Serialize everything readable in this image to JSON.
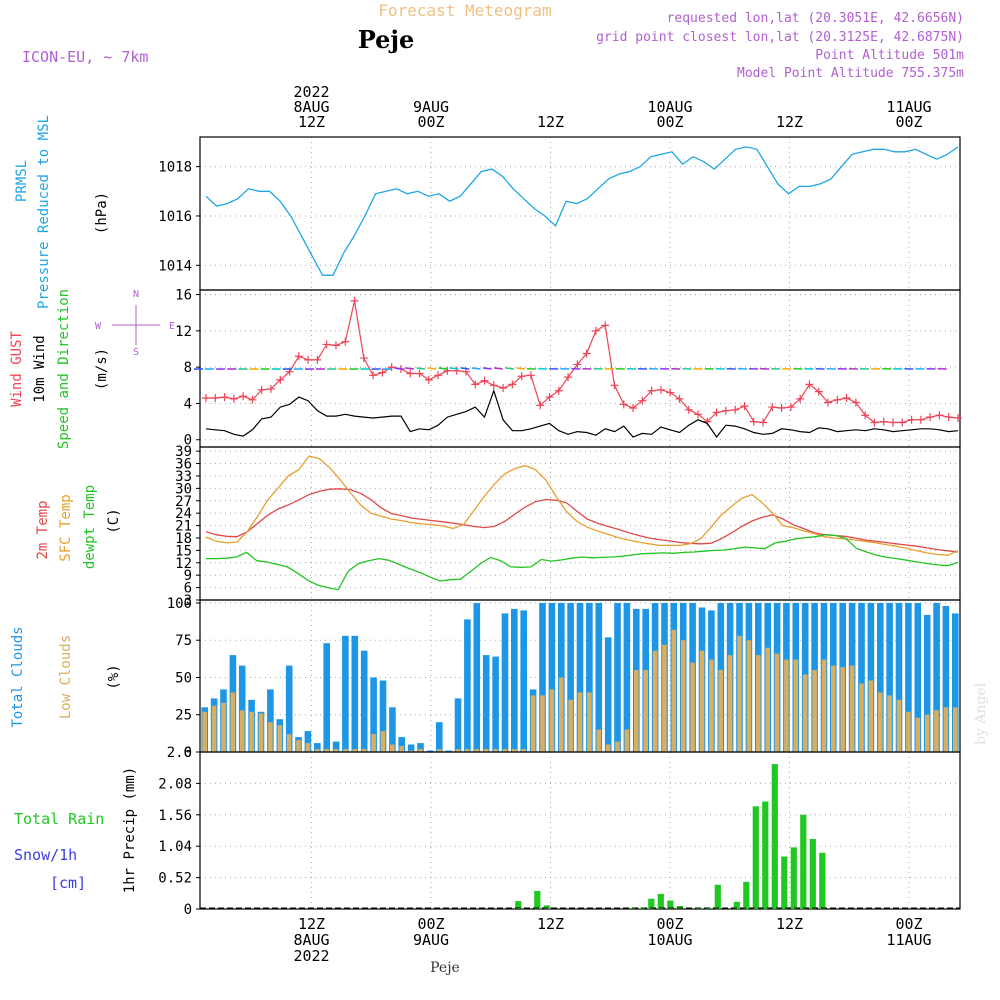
{
  "header": {
    "title": "Forecast Meteogram",
    "location": "Peje",
    "model": "ICON-EU, ~ 7km",
    "requested": "requested lon,lat (20.3051E, 42.6656N)",
    "gridpoint": "grid point closest lon,lat (20.3125E, 42.6875N)",
    "point_alt": "Point Altitude 501m",
    "model_alt": "Model Point Altitude 755.375m",
    "footer": "Peje",
    "watermark": "by Angel"
  },
  "time_axis": {
    "hours_start": 0,
    "hours_end": 63,
    "ticks": [
      {
        "hour": 9,
        "top": [
          "2022",
          "8AUG",
          "12Z"
        ],
        "bottom": [
          "12Z",
          "8AUG",
          "2022"
        ]
      },
      {
        "hour": 21,
        "top": [
          "9AUG",
          "00Z"
        ],
        "bottom": [
          "00Z",
          "9AUG"
        ]
      },
      {
        "hour": 33,
        "top": [
          "12Z"
        ],
        "bottom": [
          "12Z"
        ]
      },
      {
        "hour": 45,
        "top": [
          "10AUG",
          "00Z"
        ],
        "bottom": [
          "00Z",
          "10AUG"
        ]
      },
      {
        "hour": 57,
        "top": [
          "12Z"
        ],
        "bottom": [
          "12Z"
        ]
      },
      {
        "hour": 69,
        "top": [
          "11AUG",
          "00Z"
        ],
        "bottom": [
          "00Z",
          "11AUG"
        ]
      }
    ]
  },
  "colors": {
    "pressure": "#1ca6e6",
    "gust": "#ee4455",
    "wind": "#000000",
    "temp": "#e04848",
    "sfc": "#e6a030",
    "dewpt": "#22c422",
    "total_clouds": "#1e96e6",
    "low_clouds": "#d8ae60",
    "precip": "#22c822",
    "purple": "#b060d0",
    "snow": "#3c3ce0",
    "title": "#f0c080"
  },
  "chart_data": [
    {
      "type": "line",
      "panel": "pressure",
      "ylabel_lines": [
        "PRMSL",
        "Pressure Reduced to MSL"
      ],
      "unit": "(hPa)",
      "ylim": [
        1013,
        1019.2
      ],
      "yticks": [
        1014,
        1016,
        1018
      ],
      "series": [
        {
          "values": [
            1016.8,
            1016.4,
            1016.5,
            1016.7,
            1017.1,
            1017.0,
            1017.0,
            1016.6,
            1016.0,
            1015.2,
            1014.4,
            1013.6,
            1013.6,
            1014.5,
            1015.2,
            1016.0,
            1016.9,
            1017.0,
            1017.1,
            1016.9,
            1017.0,
            1016.8,
            1016.9,
            1016.6,
            1016.8,
            1017.3,
            1017.8,
            1017.9,
            1017.6,
            1017.1,
            1016.7,
            1016.3,
            1016.0,
            1015.6,
            1016.6,
            1016.5,
            1016.7,
            1017.1,
            1017.5,
            1017.7,
            1017.8,
            1018.0,
            1018.4,
            1018.5,
            1018.6,
            1018.1,
            1018.4,
            1018.2,
            1017.9,
            1018.3,
            1018.7,
            1018.8,
            1018.7,
            1018.0,
            1017.3,
            1016.9,
            1017.2,
            1017.2,
            1017.3,
            1017.5,
            1018.0,
            1018.5,
            1018.6,
            1018.7,
            1018.7,
            1018.6,
            1018.6,
            1018.7,
            1018.5,
            1018.3,
            1018.5,
            1018.8
          ]
        }
      ]
    },
    {
      "type": "line",
      "panel": "wind",
      "ylabel_lines": [
        "Wind GUST",
        "10m Wind",
        "Speed and Direction"
      ],
      "unit": "(m/s)",
      "compass": {
        "north": "N",
        "south": "S",
        "west": "W",
        "east": "E"
      },
      "ylim": [
        -0.8,
        16.5
      ],
      "yticks": [
        0,
        4,
        8,
        12,
        16
      ],
      "gust": [
        4.6,
        4.6,
        4.7,
        4.5,
        4.8,
        4.4,
        5.5,
        5.6,
        6.6,
        7.5,
        9.2,
        8.8,
        8.8,
        10.5,
        10.4,
        10.8,
        15.3,
        9.0,
        7.1,
        7.4,
        8.0,
        7.8,
        7.3,
        7.3,
        6.6,
        7.1,
        7.6,
        7.6,
        7.5,
        6.1,
        6.5,
        6.0,
        5.7,
        6.1,
        7.0,
        7.1,
        3.8,
        4.7,
        5.4,
        6.9,
        8.3,
        9.5,
        12.0,
        12.6,
        6.0,
        3.9,
        3.5,
        4.3,
        5.4,
        5.5,
        5.2,
        4.5,
        3.3,
        2.8,
        2.0,
        3.0,
        3.2,
        3.3,
        3.7,
        2.0,
        1.9,
        3.6,
        3.5,
        3.6,
        4.5,
        6.1,
        5.3,
        4.1,
        4.4,
        4.6,
        4.1,
        2.7,
        1.9,
        2.0,
        1.9,
        1.9,
        2.2,
        2.2,
        2.5,
        2.7,
        2.5,
        2.4
      ],
      "wind": [
        1.2,
        1.1,
        1.0,
        0.6,
        0.4,
        1.1,
        2.3,
        2.5,
        3.6,
        3.9,
        4.7,
        4.3,
        3.2,
        2.6,
        2.6,
        2.8,
        2.6,
        2.5,
        2.4,
        2.5,
        2.6,
        2.6,
        0.9,
        1.2,
        1.1,
        1.6,
        2.5,
        2.8,
        3.1,
        3.6,
        2.5,
        5.4,
        2.2,
        1.0,
        1.0,
        1.2,
        1.5,
        1.8,
        1.0,
        0.6,
        0.9,
        0.8,
        0.5,
        1.2,
        0.9,
        1.5,
        0.3,
        0.7,
        0.6,
        1.4,
        1.1,
        0.8,
        1.6,
        2.2,
        1.8,
        0.3,
        1.6,
        1.5,
        1.2,
        0.8,
        0.6,
        0.7,
        1.2,
        1.1,
        0.9,
        0.8,
        1.3,
        1.2,
        0.9,
        1.0,
        1.1,
        1.0,
        1.2,
        1.1,
        0.9,
        1.0,
        1.1,
        1.2,
        1.2,
        1.1,
        0.9,
        1.0
      ]
    },
    {
      "type": "line",
      "panel": "temperature",
      "ylabel_lines": [
        "2m Temp",
        "SFC Temp",
        "dewpt Temp"
      ],
      "unit": "(C)",
      "ylim": [
        3,
        40
      ],
      "yticks": [
        3,
        6,
        9,
        12,
        15,
        18,
        21,
        24,
        27,
        30,
        33,
        36,
        39
      ],
      "series": [
        {
          "name": "2m Temp",
          "values": [
            19.5,
            18.8,
            18.4,
            18.3,
            19.5,
            21.5,
            23.5,
            25.0,
            26.0,
            27.2,
            28.5,
            29.3,
            29.8,
            29.9,
            29.7,
            28.8,
            27.3,
            25.3,
            23.9,
            23.4,
            22.8,
            22.5,
            22.2,
            21.9,
            21.6,
            21.2,
            20.8,
            20.5,
            20.8,
            22.0,
            23.8,
            25.5,
            26.8,
            27.3,
            27.1,
            26.5,
            24.5,
            22.6,
            21.6,
            20.8,
            20.1,
            19.3,
            18.6,
            18.0,
            17.6,
            17.3,
            16.9,
            16.7,
            16.6,
            16.7,
            17.8,
            19.2,
            20.8,
            22.1,
            23.0,
            23.6,
            22.6,
            21.2,
            20.3,
            19.3,
            18.8,
            18.6,
            18.4,
            18.0,
            17.5,
            17.2,
            16.9,
            16.6,
            16.3,
            16.0,
            15.6,
            15.2,
            14.9,
            14.6
          ]
        },
        {
          "name": "SFC Temp",
          "values": [
            18.2,
            17.2,
            16.8,
            17.0,
            19.5,
            23.2,
            27.2,
            30.1,
            33.0,
            34.5,
            37.8,
            37.2,
            35.0,
            32.2,
            29.0,
            26.0,
            24.0,
            23.3,
            22.6,
            22.2,
            21.7,
            21.4,
            21.2,
            20.9,
            20.3,
            21.2,
            24.6,
            28.0,
            31.0,
            33.5,
            34.8,
            35.5,
            34.5,
            32.0,
            28.0,
            24.4,
            22.0,
            20.6,
            19.7,
            18.9,
            18.1,
            17.5,
            17.0,
            16.6,
            16.2,
            16.2,
            16.2,
            16.6,
            17.8,
            20.5,
            23.5,
            25.6,
            27.6,
            28.5,
            26.5,
            24.0,
            21.0,
            20.5,
            19.7,
            19.1,
            18.3,
            18.0,
            17.8,
            17.5,
            17.2,
            16.8,
            16.4,
            16.0,
            15.5,
            14.9,
            14.4,
            14.0,
            13.8,
            14.9
          ]
        },
        {
          "name": "dewpt Temp",
          "values": [
            13.0,
            13.0,
            13.1,
            13.4,
            14.5,
            12.5,
            12.2,
            11.6,
            11.0,
            9.5,
            7.8,
            6.6,
            6.0,
            5.5,
            10.0,
            11.8,
            12.5,
            13.0,
            12.6,
            11.6,
            10.6,
            9.7,
            8.6,
            7.6,
            7.9,
            8.0,
            9.8,
            11.8,
            13.3,
            12.5,
            11.0,
            10.9,
            11.0,
            12.8,
            12.4,
            12.7,
            13.1,
            13.4,
            13.2,
            13.3,
            13.4,
            13.6,
            13.9,
            14.2,
            14.3,
            14.4,
            14.3,
            14.5,
            14.6,
            14.8,
            15.0,
            15.1,
            15.4,
            15.8,
            15.6,
            15.4,
            16.8,
            17.2,
            17.8,
            18.1,
            18.3,
            18.8,
            18.6,
            17.8,
            15.5,
            14.6,
            13.8,
            13.3,
            13.0,
            12.6,
            12.2,
            11.8,
            11.5,
            11.3,
            12.1
          ]
        }
      ]
    },
    {
      "type": "bar",
      "panel": "clouds",
      "ylabel_lines": [
        "Total Clouds",
        "Low Clouds"
      ],
      "unit": "(%)",
      "ylim": [
        0,
        102
      ],
      "yticks": [
        0,
        25,
        50,
        75,
        100
      ],
      "series": [
        {
          "name": "Total Clouds",
          "values": [
            30,
            36,
            42,
            65,
            58,
            35,
            27,
            42,
            22,
            58,
            10,
            14,
            6,
            73,
            7,
            78,
            78,
            68,
            50,
            48,
            30,
            10,
            5,
            6,
            1,
            20,
            1,
            36,
            89,
            100,
            65,
            64,
            93,
            96,
            95,
            42,
            100,
            100,
            100,
            100,
            100,
            100,
            100,
            77,
            100,
            100,
            96,
            96,
            100,
            100,
            100,
            100,
            100,
            97,
            95,
            100,
            100,
            100,
            100,
            100,
            100,
            100,
            100,
            100,
            100,
            100,
            100,
            100,
            100,
            100,
            100,
            100,
            100,
            100,
            100,
            100,
            100,
            92,
            100,
            98,
            93
          ]
        },
        {
          "name": "Low Clouds",
          "values": [
            27,
            31,
            33,
            40,
            28,
            27,
            26,
            20,
            18,
            12,
            8,
            6,
            2,
            2,
            2,
            2,
            2,
            2,
            12,
            14,
            5,
            4,
            1,
            2,
            0,
            2,
            0,
            2,
            2,
            2,
            2,
            2,
            2,
            2,
            2,
            38,
            38,
            42,
            50,
            35,
            40,
            40,
            15,
            5,
            7,
            15,
            55,
            55,
            68,
            72,
            82,
            75,
            60,
            68,
            62,
            55,
            65,
            78,
            75,
            65,
            70,
            66,
            62,
            62,
            52,
            55,
            62,
            58,
            57,
            58,
            46,
            48,
            40,
            38,
            35,
            27,
            23,
            25,
            28,
            30,
            30
          ]
        }
      ]
    },
    {
      "type": "bar",
      "panel": "precip",
      "left_labels": [
        "Total Rain",
        "Snow/1h",
        "[cm]"
      ],
      "ylabel": "1hr Precip (mm)",
      "ylim": [
        0,
        2.6
      ],
      "yticks": [
        0,
        0.52,
        1.04,
        1.56,
        2.08,
        2.6
      ],
      "series": [
        {
          "name": "Total Rain",
          "values": [
            0,
            0,
            0,
            0,
            0,
            0,
            0,
            0,
            0,
            0,
            0,
            0,
            0,
            0,
            0,
            0,
            0,
            0,
            0,
            0,
            0,
            0,
            0,
            0,
            0,
            0,
            0,
            0,
            0,
            0,
            0,
            0,
            0,
            0.13,
            0,
            0.3,
            0.06,
            0,
            0,
            0,
            0,
            0,
            0,
            0,
            0,
            0.02,
            0.02,
            0.17,
            0.25,
            0.14,
            0.05,
            0,
            0.01,
            0.02,
            0.4,
            0,
            0.12,
            0.45,
            1.7,
            1.78,
            2.4,
            0.87,
            1.02,
            1.56,
            1.16,
            0.93,
            0,
            0,
            0,
            0,
            0,
            0,
            0,
            0,
            0,
            0,
            0,
            0,
            0,
            0
          ]
        }
      ]
    }
  ]
}
